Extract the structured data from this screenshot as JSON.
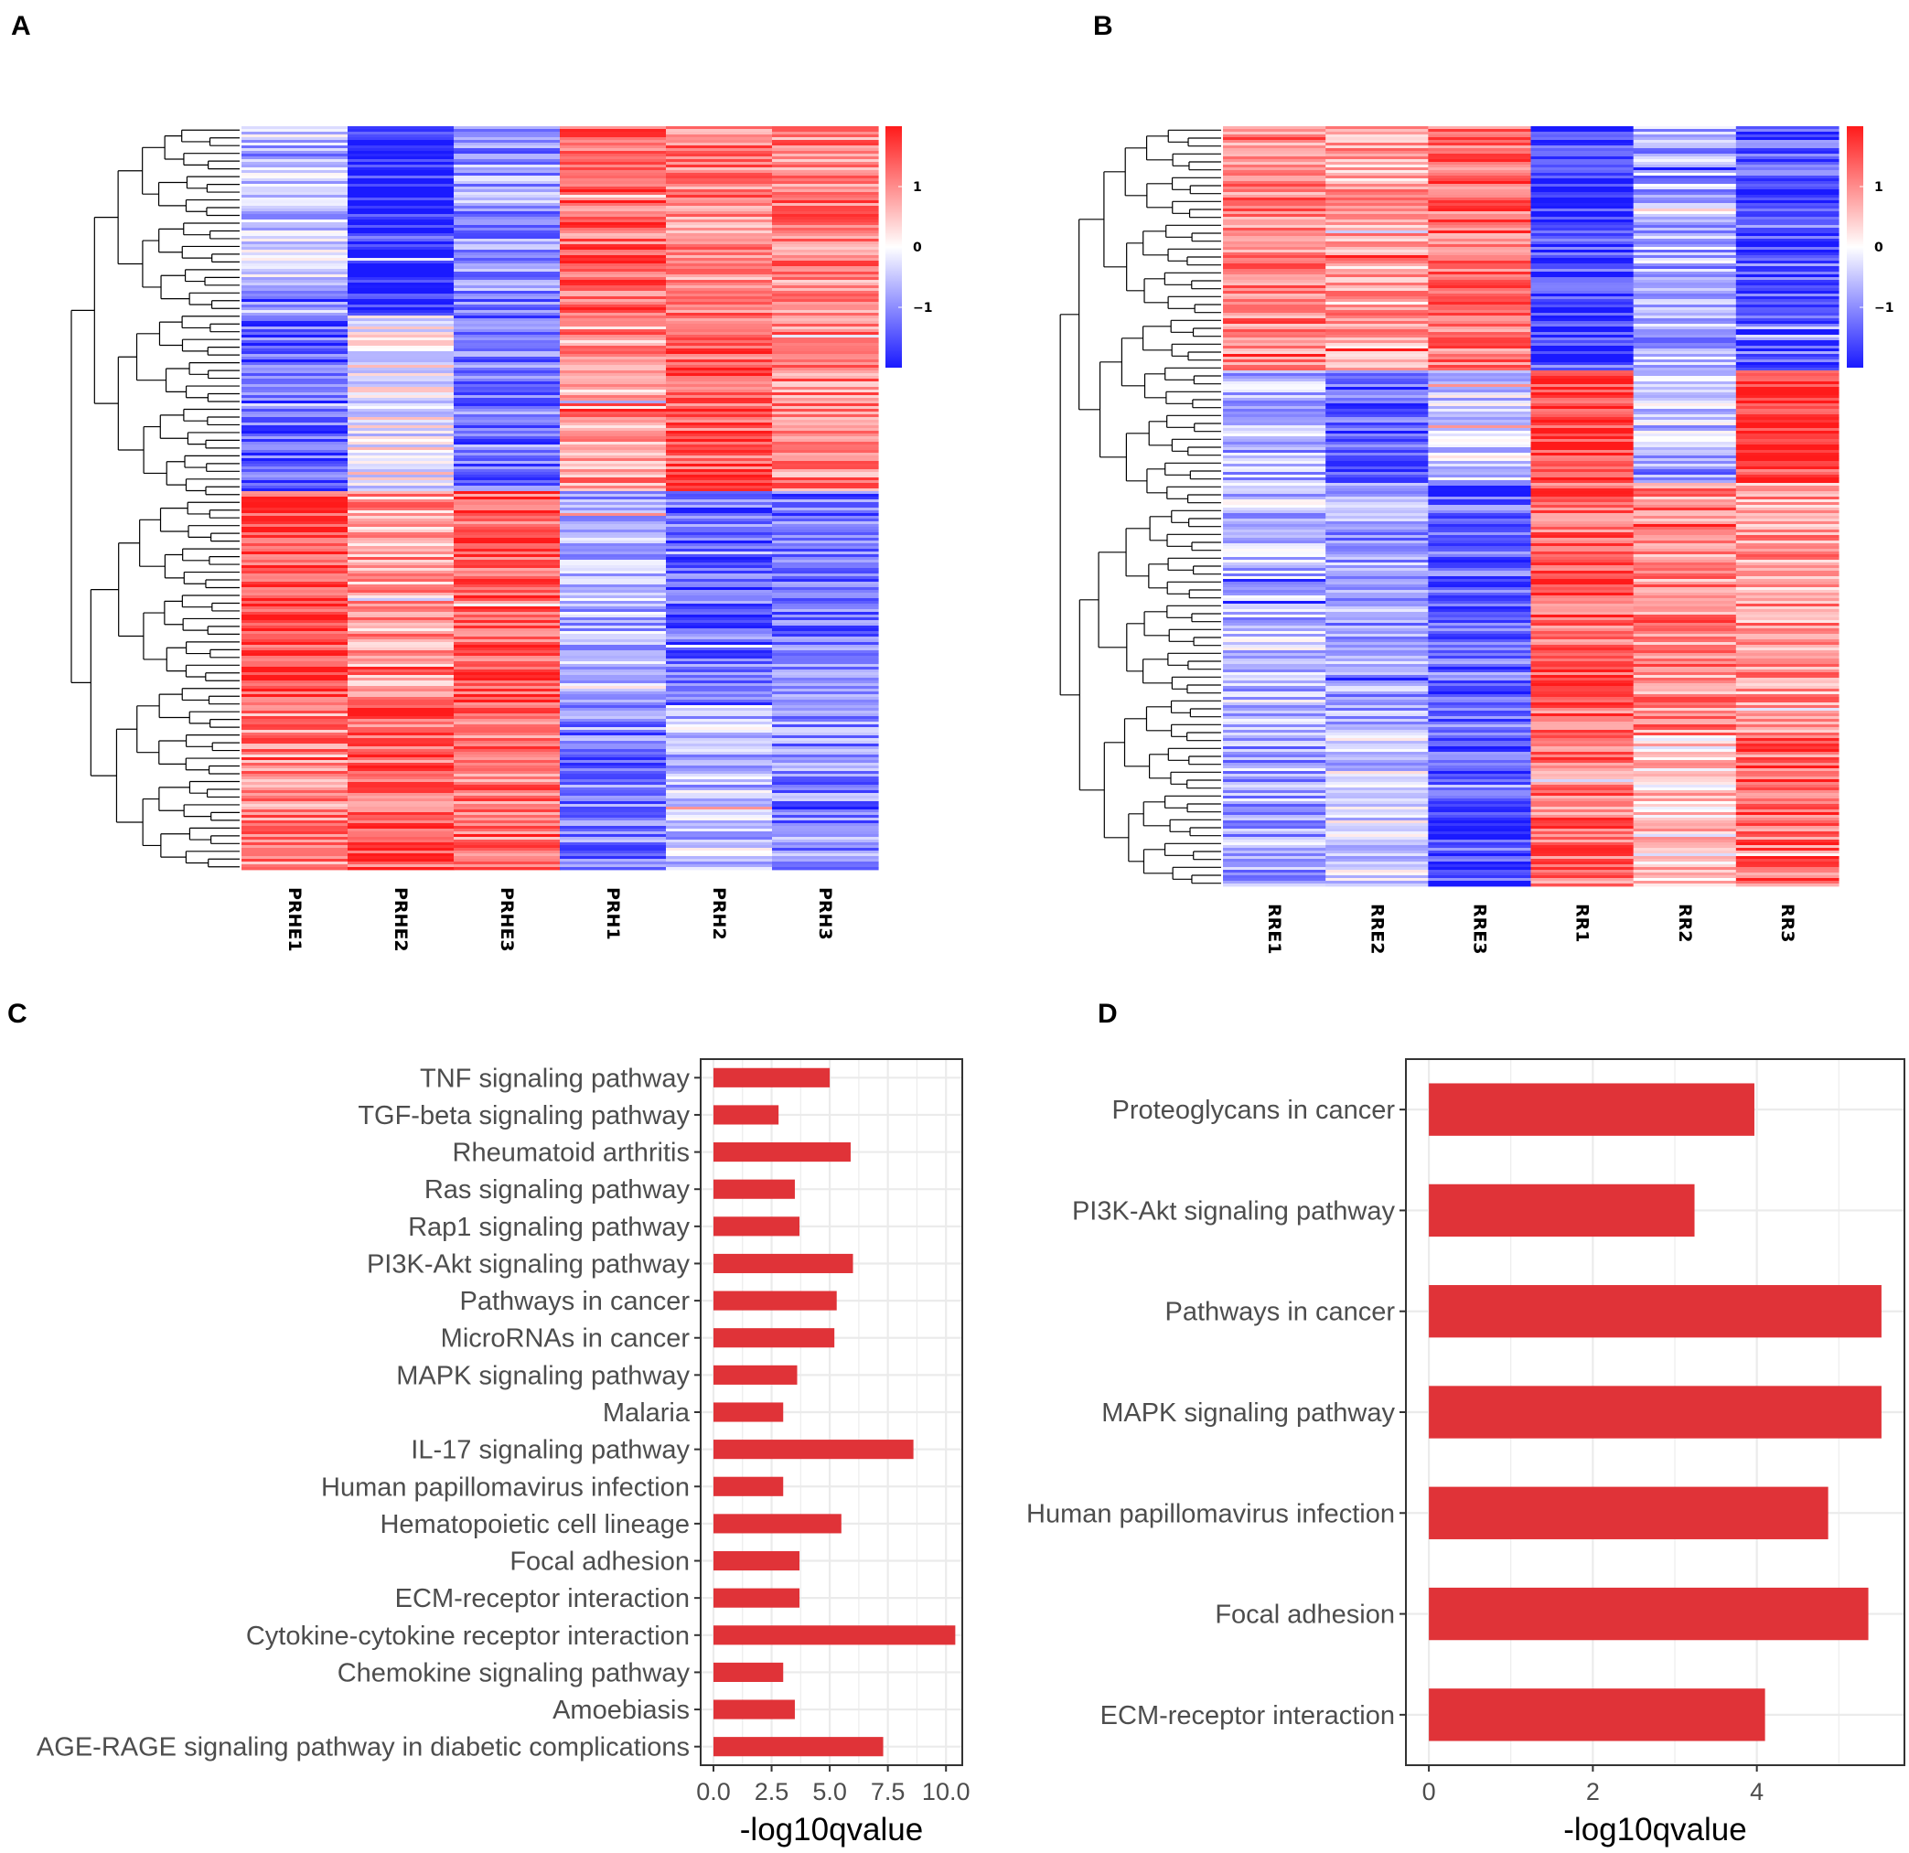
{
  "colors": {
    "bar": "#e03338",
    "heat_high": "#ff1a1a",
    "heat_mid": "#ffffff",
    "heat_low": "#1a1aff",
    "grid": "#ebebeb",
    "panel_border": "#333333"
  },
  "panels": {
    "a": "A",
    "b": "B",
    "c": "C",
    "d": "D"
  },
  "chart_data": [
    {
      "id": "A",
      "type": "heatmap",
      "title": "",
      "columns": [
        "PRHE1",
        "PRHE2",
        "PRHE3",
        "PRH1",
        "PRH2",
        "PRH3"
      ],
      "colorbar_ticks": [
        "1",
        "0",
        "−1"
      ],
      "clusters": [
        {
          "fraction": 0.255,
          "values": [
            -0.35,
            -1.25,
            -0.6,
            0.9,
            0.7,
            0.75
          ]
        },
        {
          "fraction": 0.235,
          "values": [
            -0.9,
            -0.05,
            -0.75,
            0.55,
            0.95,
            0.7
          ]
        },
        {
          "fraction": 0.29,
          "values": [
            1.05,
            0.55,
            0.95,
            -0.45,
            -0.85,
            -0.8
          ]
        },
        {
          "fraction": 0.22,
          "values": [
            0.7,
            0.9,
            0.75,
            -0.75,
            -0.35,
            -0.65
          ]
        }
      ]
    },
    {
      "id": "B",
      "type": "heatmap",
      "title": "",
      "columns": [
        "RRE1",
        "RRE2",
        "RRE3",
        "RR1",
        "RR2",
        "RR3"
      ],
      "colorbar_ticks": [
        "1",
        "0",
        "−1"
      ],
      "clusters": [
        {
          "fraction": 0.32,
          "values": [
            0.7,
            0.5,
            0.85,
            -1.1,
            -0.45,
            -0.9
          ]
        },
        {
          "fraction": 0.15,
          "values": [
            -0.45,
            -0.9,
            -0.3,
            1.15,
            -0.35,
            1.2
          ]
        },
        {
          "fraction": 0.33,
          "values": [
            -0.35,
            -0.55,
            -0.85,
            0.9,
            0.65,
            0.55
          ]
        },
        {
          "fraction": 0.2,
          "values": [
            -0.5,
            -0.25,
            -1.0,
            0.8,
            0.25,
            0.85
          ]
        }
      ]
    },
    {
      "id": "C",
      "type": "bar",
      "orientation": "horizontal",
      "categories": [
        "TNF signaling pathway",
        "TGF-beta signaling pathway",
        "Rheumatoid arthritis",
        "Ras signaling pathway",
        "Rap1 signaling pathway",
        "PI3K-Akt signaling pathway",
        "Pathways in cancer",
        "MicroRNAs in cancer",
        "MAPK signaling pathway",
        "Malaria",
        "IL-17 signaling pathway",
        "Human papillomavirus infection",
        "Hematopoietic cell lineage",
        "Focal adhesion",
        "ECM-receptor interaction",
        "Cytokine-cytokine receptor interaction",
        "Chemokine signaling pathway",
        "Amoebiasis",
        "AGE-RAGE signaling pathway in diabetic complications"
      ],
      "values": [
        5.0,
        2.8,
        5.9,
        3.5,
        3.7,
        6.0,
        5.3,
        5.2,
        3.6,
        3.0,
        8.6,
        3.0,
        5.5,
        3.7,
        3.7,
        10.4,
        3.0,
        3.5,
        7.3
      ],
      "xlim": [
        -0.55,
        10.7
      ],
      "xticks": [
        "0.0",
        "2.5",
        "5.0",
        "7.5",
        "10.0"
      ],
      "xtick_values": [
        0,
        2.5,
        5,
        7.5,
        10
      ],
      "xlabel": "-log10qvalue",
      "ylabel": ""
    },
    {
      "id": "D",
      "type": "bar",
      "orientation": "horizontal",
      "categories": [
        "Proteoglycans in cancer",
        "PI3K-Akt signaling pathway",
        "Pathways in cancer",
        "MAPK signaling pathway",
        "Human papillomavirus infection",
        "Focal adhesion",
        "ECM-receptor interaction"
      ],
      "values": [
        3.97,
        3.24,
        5.52,
        5.52,
        4.87,
        5.36,
        4.1
      ],
      "xlim": [
        -0.28,
        5.8
      ],
      "xticks": [
        "0",
        "2",
        "4"
      ],
      "xtick_values": [
        0,
        2,
        4
      ],
      "xlabel": "-log10qvalue",
      "ylabel": ""
    }
  ]
}
